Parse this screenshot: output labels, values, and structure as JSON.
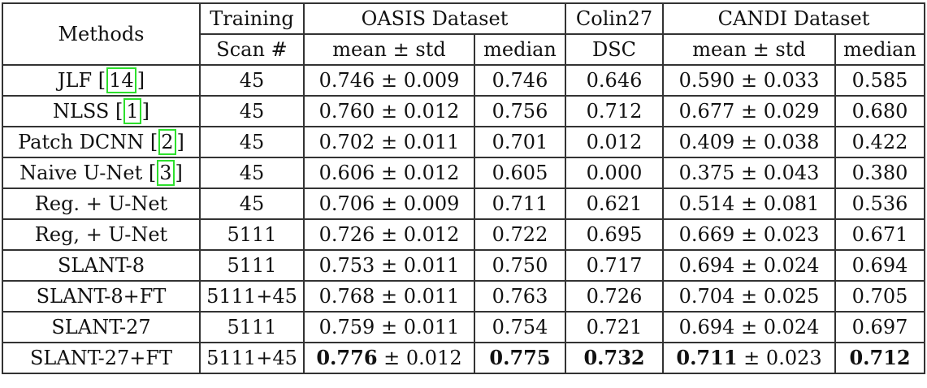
{
  "header": {
    "methods": "Methods",
    "training_top": "Training",
    "training_bottom": "Scan #",
    "oasis": "OASIS Dataset",
    "colin": "Colin27",
    "candi": "CANDI Dataset",
    "mean_std": "mean ± std",
    "median": "median",
    "dsc": "DSC"
  },
  "rows": [
    {
      "method": "JLF",
      "cite": "14",
      "scans": "45",
      "oasis_mean": "0.746",
      "oasis_std": "0.009",
      "oasis_median": "0.746",
      "colin_dsc": "0.646",
      "candi_mean": "0.590",
      "candi_std": "0.033",
      "candi_median": "0.585"
    },
    {
      "method": "NLSS",
      "cite": "1",
      "scans": "45",
      "oasis_mean": "0.760",
      "oasis_std": "0.012",
      "oasis_median": "0.756",
      "colin_dsc": "0.712",
      "candi_mean": "0.677",
      "candi_std": "0.029",
      "candi_median": "0.680"
    },
    {
      "method": "Patch DCNN",
      "cite": "2",
      "scans": "45",
      "oasis_mean": "0.702",
      "oasis_std": "0.011",
      "oasis_median": "0.701",
      "colin_dsc": "0.012",
      "candi_mean": "0.409",
      "candi_std": "0.038",
      "candi_median": "0.422"
    },
    {
      "method": "Naive U-Net",
      "cite": "3",
      "scans": "45",
      "oasis_mean": "0.606",
      "oasis_std": "0.012",
      "oasis_median": "0.605",
      "colin_dsc": "0.000",
      "candi_mean": "0.375",
      "candi_std": "0.043",
      "candi_median": "0.380"
    },
    {
      "method": "Reg. + U-Net",
      "scans": "45",
      "oasis_mean": "0.706",
      "oasis_std": "0.009",
      "oasis_median": "0.711",
      "colin_dsc": "0.621",
      "candi_mean": "0.514",
      "candi_std": "0.081",
      "candi_median": "0.536"
    },
    {
      "method": "Reg, + U-Net",
      "scans": "5111",
      "oasis_mean": "0.726",
      "oasis_std": "0.012",
      "oasis_median": "0.722",
      "colin_dsc": "0.695",
      "candi_mean": "0.669",
      "candi_std": "0.023",
      "candi_median": "0.671"
    },
    {
      "method": "SLANT-8",
      "scans": "5111",
      "oasis_mean": "0.753",
      "oasis_std": "0.011",
      "oasis_median": "0.750",
      "colin_dsc": "0.717",
      "candi_mean": "0.694",
      "candi_std": "0.024",
      "candi_median": "0.694"
    },
    {
      "method": "SLANT-8+FT",
      "scans": "5111+45",
      "oasis_mean": "0.768",
      "oasis_std": "0.011",
      "oasis_median": "0.763",
      "colin_dsc": "0.726",
      "candi_mean": "0.704",
      "candi_std": "0.025",
      "candi_median": "0.705"
    },
    {
      "method": "SLANT-27",
      "scans": "5111",
      "oasis_mean": "0.759",
      "oasis_std": "0.011",
      "oasis_median": "0.754",
      "colin_dsc": "0.721",
      "candi_mean": "0.694",
      "candi_std": "0.024",
      "candi_median": "0.697"
    },
    {
      "method": "SLANT-27+FT",
      "scans": "5111+45",
      "oasis_mean": "0.776",
      "oasis_std": "0.012",
      "oasis_median": "0.775",
      "colin_dsc": "0.732",
      "candi_mean": "0.711",
      "candi_std": "0.023",
      "candi_median": "0.712",
      "bold": true
    }
  ],
  "pm": "±"
}
